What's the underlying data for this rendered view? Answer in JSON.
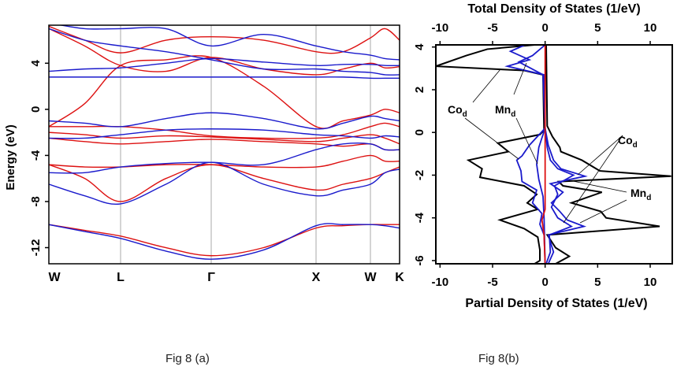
{
  "captions": {
    "a": "Fig 8 (a)",
    "b": "Fig 8(b)"
  },
  "chart_data": [
    {
      "type": "line",
      "ylabel": "Energy (eV)",
      "xlabel": "",
      "ylim": [
        -13.4,
        7.3
      ],
      "yticks": [
        4,
        0,
        -4,
        -8,
        -12
      ],
      "kpoints": [
        "W",
        "L",
        "Γ",
        "X",
        "W",
        "K"
      ],
      "k_samples": [
        0,
        0.5,
        1,
        1.5,
        2,
        2.5,
        3,
        3.5,
        4,
        4.5,
        5
      ],
      "grid": "vertical lines at high-symmetry points",
      "colors": {
        "spin_up": "#dd1111",
        "spin_down": "#1a1acc"
      },
      "series": [
        {
          "spin": "up",
          "values": [
            -10,
            -10.5,
            -11,
            -12,
            -12.7,
            -12,
            -10.3,
            -10.1,
            -10,
            -10,
            -10
          ]
        },
        {
          "spin": "up",
          "values": [
            -4.8,
            -6,
            -8,
            -6,
            -4.8,
            -6,
            -7,
            -6.5,
            -6,
            -5.5,
            -5
          ]
        },
        {
          "spin": "up",
          "values": [
            -4.8,
            -5,
            -5,
            -4.8,
            -4.8,
            -5,
            -5,
            -4.5,
            -4,
            -4.5,
            -4.5
          ]
        },
        {
          "spin": "up",
          "values": [
            -2.5,
            -2.8,
            -3,
            -2.8,
            -2.6,
            -2.8,
            -3,
            -3.2,
            -3,
            -3.5,
            -3.5
          ]
        },
        {
          "spin": "up",
          "values": [
            -2,
            -2.2,
            -2.5,
            -2.3,
            -2.4,
            -2.6,
            -2.8,
            -2.5,
            -2.2,
            -2.5,
            -3
          ]
        },
        {
          "spin": "up",
          "values": [
            -1.5,
            -1.5,
            -1.5,
            -1.8,
            -2.3,
            -2.5,
            -2.5,
            -2.2,
            -1.5,
            -1.2,
            -1.5
          ]
        },
        {
          "spin": "up",
          "values": [
            -1.5,
            0.5,
            3.8,
            4.3,
            4.5,
            2,
            -1.5,
            -1,
            -0.5,
            0,
            -0.3
          ]
        },
        {
          "spin": "up",
          "values": [
            7.2,
            6,
            4.9,
            6,
            6.3,
            6,
            5,
            5,
            6.2,
            7,
            6
          ]
        },
        {
          "spin": "up",
          "values": [
            7,
            5.5,
            3.8,
            3.3,
            4.5,
            3.5,
            3,
            3.5,
            4,
            3.6,
            3.7
          ]
        },
        {
          "spin": "down",
          "values": [
            -10,
            -10.6,
            -11.2,
            -12.3,
            -13,
            -12.2,
            -10.1,
            -10,
            -10,
            -10.1,
            -10.3
          ]
        },
        {
          "spin": "down",
          "values": [
            -6.5,
            -7.5,
            -8.2,
            -6.5,
            -4.6,
            -6.5,
            -7.5,
            -7,
            -6.5,
            -5.5,
            -5.2
          ]
        },
        {
          "spin": "down",
          "values": [
            -5.5,
            -5.5,
            -5,
            -4.7,
            -4.6,
            -4.8,
            -3.5,
            -3,
            -3,
            -3.5,
            -3.5
          ]
        },
        {
          "spin": "down",
          "values": [
            -2.5,
            -2.5,
            -2.2,
            -1.8,
            -1.7,
            -1.8,
            -2.2,
            -2.3,
            -2.5,
            -2.3,
            -2.4
          ]
        },
        {
          "spin": "down",
          "values": [
            -1,
            -1.2,
            -1.5,
            -0.8,
            -0.3,
            -0.8,
            -1.7,
            -1.2,
            -0.6,
            -0.8,
            -1
          ]
        },
        {
          "spin": "down",
          "values": [
            2.8,
            2.8,
            2.8,
            2.8,
            2.8,
            2.8,
            2.8,
            2.8,
            2.7,
            2.7,
            2.7
          ]
        },
        {
          "spin": "down",
          "values": [
            7,
            6,
            5.5,
            5,
            4.3,
            3.5,
            3.5,
            3.3,
            3.2,
            3,
            3
          ]
        },
        {
          "spin": "down",
          "values": [
            7.5,
            7,
            7,
            7,
            5.5,
            6.5,
            5.5,
            5,
            4.7,
            4.4,
            4.3
          ]
        },
        {
          "spin": "down",
          "values": [
            3.3,
            3.5,
            3.6,
            4,
            4.4,
            4.1,
            3.8,
            3.9,
            3.9,
            3.8,
            3.8
          ]
        }
      ]
    },
    {
      "type": "line",
      "title_top": "Total Density of States (1/eV)",
      "xlabel": "Partial Density of States (1/eV)",
      "xlim": [
        -10.4,
        12.1
      ],
      "ylim": [
        -6.15,
        4.1
      ],
      "xticks": [
        -10,
        -5,
        0,
        5,
        10
      ],
      "yticks": [
        4,
        2,
        0,
        -2,
        -4,
        -6
      ],
      "annotations": [
        "Co",
        "Mn",
        "Co",
        "Mn"
      ],
      "annotation_subscript": "d",
      "series": [
        {
          "role": "total",
          "color": "#000000",
          "points": [
            [
              -1,
              4.1
            ],
            [
              -5.5,
              3.9
            ],
            [
              -7.5,
              3.6
            ],
            [
              -10.4,
              3.1
            ],
            [
              -2,
              2.9
            ],
            [
              -0.2,
              2.7
            ],
            [
              -0.1,
              0.1
            ],
            [
              -0.5,
              -0.1
            ],
            [
              -4.5,
              -0.5
            ],
            [
              -3.5,
              -0.9
            ],
            [
              -7.3,
              -1.3
            ],
            [
              -6,
              -1.7
            ],
            [
              -6.2,
              -2.1
            ],
            [
              -2,
              -2.5
            ],
            [
              -0.8,
              -2.9
            ],
            [
              -1.7,
              -3.3
            ],
            [
              -0.7,
              -3.6
            ],
            [
              -4.3,
              -4.1
            ],
            [
              -2,
              -4.5
            ],
            [
              -0.7,
              -4.9
            ],
            [
              -0.5,
              -5.5
            ],
            [
              -0.5,
              -6.0
            ],
            [
              -1,
              -6.15
            ]
          ]
        },
        {
          "role": "total",
          "color": "#000000",
          "points": [
            [
              0.1,
              4.1
            ],
            [
              0.2,
              0.3
            ],
            [
              0.7,
              -0.2
            ],
            [
              1.4,
              -0.7
            ],
            [
              1.5,
              -0.9
            ],
            [
              3.5,
              -1.3
            ],
            [
              5.2,
              -1.8
            ],
            [
              12,
              -2.05
            ],
            [
              1.3,
              -2.3
            ],
            [
              1.7,
              -2.5
            ],
            [
              5.4,
              -2.8
            ],
            [
              2.5,
              -3.3
            ],
            [
              5.3,
              -3.7
            ],
            [
              5.8,
              -4.0
            ],
            [
              10.9,
              -4.4
            ],
            [
              0.2,
              -4.8
            ],
            [
              1,
              -5.4
            ],
            [
              2.3,
              -5.8
            ],
            [
              1,
              -6.15
            ]
          ]
        },
        {
          "role": "Co_d",
          "color": "#1a1acc",
          "points": [
            [
              -1.9,
              4.1
            ],
            [
              -3.3,
              3.8
            ],
            [
              -1.5,
              3.4
            ],
            [
              -3.6,
              3.1
            ],
            [
              -0.1,
              2.7
            ],
            [
              0,
              0.2
            ],
            [
              -1.5,
              -0.6
            ],
            [
              -2.2,
              -1.1
            ],
            [
              -2.7,
              -1.3
            ],
            [
              -2.3,
              -1.8
            ],
            [
              -2.2,
              -2.3
            ],
            [
              -0.8,
              -2.7
            ],
            [
              -1.2,
              -3.3
            ],
            [
              -0.3,
              -3.8
            ],
            [
              -0.5,
              -4.3
            ],
            [
              -0.1,
              -4.8
            ],
            [
              0,
              -6.15
            ]
          ]
        },
        {
          "role": "Mn_d",
          "color": "#1a1acc",
          "points": [
            [
              0,
              4.1
            ],
            [
              -1.2,
              3.6
            ],
            [
              -2.5,
              3.3
            ],
            [
              -0.2,
              2.7
            ],
            [
              0,
              0.2
            ],
            [
              -0.6,
              -0.7
            ],
            [
              -0.8,
              -1.5
            ],
            [
              -0.6,
              -2.2
            ],
            [
              -0.2,
              -3
            ],
            [
              -0.1,
              -4
            ],
            [
              0,
              -6.15
            ]
          ]
        },
        {
          "role": "Co_d",
          "color": "#1a1acc",
          "points": [
            [
              0,
              0.2
            ],
            [
              0.3,
              -0.6
            ],
            [
              0.8,
              -1.3
            ],
            [
              1.5,
              -1.7
            ],
            [
              3.8,
              -2.05
            ],
            [
              0.5,
              -2.4
            ],
            [
              1.7,
              -2.8
            ],
            [
              0.6,
              -3.3
            ],
            [
              1.4,
              -3.7
            ],
            [
              2.1,
              -4.1
            ],
            [
              3.7,
              -4.4
            ],
            [
              0.3,
              -4.8
            ],
            [
              0.8,
              -5.6
            ],
            [
              0.3,
              -6.15
            ]
          ]
        },
        {
          "role": "Mn_d",
          "color": "#1a1acc",
          "points": [
            [
              0,
              0.2
            ],
            [
              0.2,
              -0.7
            ],
            [
              0.5,
              -1.3
            ],
            [
              1.2,
              -1.7
            ],
            [
              2.7,
              -2.0
            ],
            [
              0.9,
              -2.5
            ],
            [
              1.2,
              -2.9
            ],
            [
              0.6,
              -3.5
            ],
            [
              1.2,
              -4.0
            ],
            [
              2.5,
              -4.4
            ],
            [
              0.4,
              -4.8
            ],
            [
              0.5,
              -5.6
            ],
            [
              0.1,
              -6.15
            ]
          ]
        },
        {
          "role": "other",
          "color": "#dd1111",
          "points": [
            [
              0,
              4.1
            ],
            [
              0,
              3.8
            ],
            [
              0,
              3.2
            ],
            [
              0,
              2.7
            ],
            [
              0,
              0
            ],
            [
              0,
              -1.5
            ],
            [
              0,
              -3.6
            ],
            [
              -0.3,
              -4.1
            ],
            [
              -0.1,
              -4.8
            ],
            [
              0,
              -6.15
            ]
          ]
        }
      ]
    }
  ]
}
